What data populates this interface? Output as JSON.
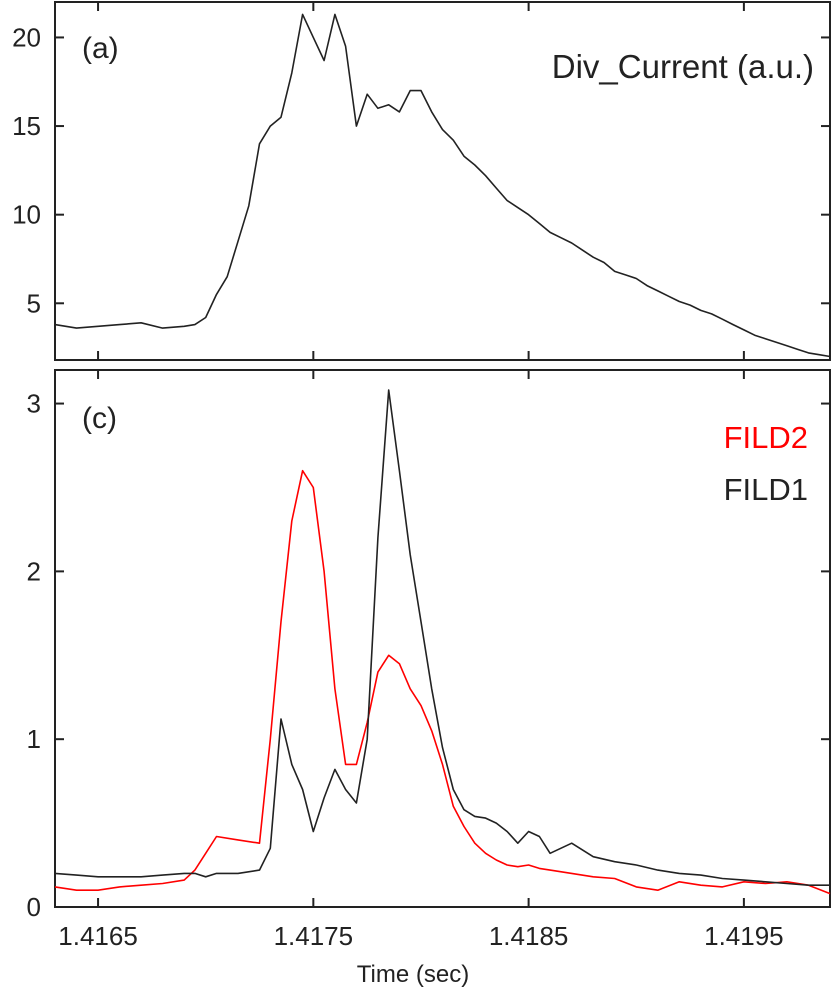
{
  "chart_data": [
    {
      "type": "line",
      "panel_label": "(a)",
      "ylabel": "",
      "xlabel": "",
      "xlim": [
        1.4163,
        1.4199
      ],
      "ylim": [
        1.8,
        22
      ],
      "yticks": [
        5,
        10,
        15,
        20
      ],
      "ytick_labels": [
        "5",
        "10",
        "15",
        "20"
      ],
      "annotation": "Div_Current (a.u.)",
      "series": [
        {
          "color": "#222222",
          "x": [
            1.4163,
            1.4164,
            1.4165,
            1.4166,
            1.4167,
            1.4168,
            1.4169,
            1.41695,
            1.417,
            1.41705,
            1.4171,
            1.41715,
            1.4172,
            1.41725,
            1.4173,
            1.41735,
            1.4174,
            1.41745,
            1.4175,
            1.41755,
            1.4176,
            1.41765,
            1.4177,
            1.41775,
            1.4178,
            1.41785,
            1.4179,
            1.41795,
            1.418,
            1.41805,
            1.4181,
            1.41815,
            1.4182,
            1.41825,
            1.4183,
            1.41835,
            1.4184,
            1.41845,
            1.4185,
            1.41855,
            1.4186,
            1.41865,
            1.4187,
            1.41875,
            1.4188,
            1.41885,
            1.4189,
            1.41895,
            1.419,
            1.41905,
            1.4191,
            1.41915,
            1.4192,
            1.41925,
            1.4193,
            1.41935,
            1.4194,
            1.41945,
            1.4195,
            1.41955,
            1.4196,
            1.41965,
            1.4197,
            1.41975,
            1.4198,
            1.41985,
            1.4199
          ],
          "y": [
            3.8,
            3.6,
            3.7,
            3.8,
            3.9,
            3.6,
            3.7,
            3.8,
            4.2,
            5.5,
            6.5,
            8.5,
            10.5,
            14.0,
            15.0,
            15.5,
            18.0,
            21.3,
            20.0,
            18.7,
            21.3,
            19.5,
            15.0,
            16.8,
            16.0,
            16.2,
            15.8,
            17.0,
            17.0,
            15.8,
            14.8,
            14.2,
            13.3,
            12.8,
            12.2,
            11.5,
            10.8,
            10.4,
            10.0,
            9.5,
            9.0,
            8.7,
            8.4,
            8.0,
            7.6,
            7.3,
            6.8,
            6.6,
            6.4,
            6.0,
            5.7,
            5.4,
            5.1,
            4.9,
            4.6,
            4.4,
            4.1,
            3.8,
            3.5,
            3.2,
            3.0,
            2.8,
            2.6,
            2.4,
            2.2,
            2.1,
            2.0
          ]
        }
      ]
    },
    {
      "type": "line",
      "panel_label": "(c)",
      "xlabel": "Time (sec)",
      "ylabel": "",
      "xlim": [
        1.4163,
        1.4199
      ],
      "ylim": [
        0,
        3.2
      ],
      "yticks": [
        0,
        1,
        2,
        3
      ],
      "ytick_labels": [
        "0",
        "1",
        "2",
        "3"
      ],
      "xticks": [
        1.4165,
        1.4175,
        1.4185,
        1.4195
      ],
      "xtick_labels": [
        "1.4165",
        "1.4175",
        "1.4185",
        "1.4195"
      ],
      "series": [
        {
          "name": "FILD2",
          "color": "#ff0000",
          "x": [
            1.4163,
            1.4164,
            1.4165,
            1.4166,
            1.4167,
            1.4168,
            1.4169,
            1.41695,
            1.417,
            1.41705,
            1.41715,
            1.41725,
            1.4173,
            1.41735,
            1.4174,
            1.41745,
            1.4175,
            1.41755,
            1.4176,
            1.41765,
            1.4177,
            1.41775,
            1.4178,
            1.41785,
            1.4179,
            1.41795,
            1.418,
            1.41805,
            1.4181,
            1.41815,
            1.4182,
            1.41825,
            1.4183,
            1.41835,
            1.4184,
            1.41845,
            1.4185,
            1.41855,
            1.4186,
            1.4187,
            1.4188,
            1.4189,
            1.419,
            1.4191,
            1.4192,
            1.4193,
            1.4194,
            1.4195,
            1.4196,
            1.4197,
            1.4198,
            1.4199
          ],
          "y": [
            0.12,
            0.1,
            0.1,
            0.12,
            0.13,
            0.14,
            0.16,
            0.22,
            0.32,
            0.42,
            0.4,
            0.38,
            1.0,
            1.7,
            2.3,
            2.6,
            2.5,
            2.0,
            1.3,
            0.85,
            0.85,
            1.1,
            1.4,
            1.5,
            1.45,
            1.3,
            1.2,
            1.05,
            0.85,
            0.6,
            0.48,
            0.38,
            0.32,
            0.28,
            0.25,
            0.24,
            0.25,
            0.23,
            0.22,
            0.2,
            0.18,
            0.17,
            0.12,
            0.1,
            0.15,
            0.13,
            0.12,
            0.15,
            0.14,
            0.15,
            0.13,
            0.08
          ]
        },
        {
          "name": "FILD1",
          "color": "#222222",
          "x": [
            1.4163,
            1.4164,
            1.4165,
            1.4166,
            1.4167,
            1.4168,
            1.4169,
            1.41695,
            1.417,
            1.41705,
            1.41715,
            1.41725,
            1.4173,
            1.41735,
            1.4174,
            1.41745,
            1.4175,
            1.41755,
            1.4176,
            1.41765,
            1.4177,
            1.41775,
            1.4178,
            1.41785,
            1.4179,
            1.41795,
            1.418,
            1.41805,
            1.4181,
            1.41815,
            1.4182,
            1.41825,
            1.4183,
            1.41835,
            1.4184,
            1.41845,
            1.4185,
            1.41855,
            1.4186,
            1.4187,
            1.4188,
            1.4189,
            1.419,
            1.4191,
            1.4192,
            1.4193,
            1.4194,
            1.4195,
            1.4196,
            1.4197,
            1.4198,
            1.4199
          ],
          "y": [
            0.2,
            0.19,
            0.18,
            0.18,
            0.18,
            0.19,
            0.2,
            0.2,
            0.18,
            0.2,
            0.2,
            0.22,
            0.35,
            1.12,
            0.85,
            0.7,
            0.45,
            0.65,
            0.82,
            0.7,
            0.62,
            1.0,
            2.2,
            3.08,
            2.6,
            2.1,
            1.7,
            1.3,
            0.95,
            0.7,
            0.58,
            0.54,
            0.53,
            0.5,
            0.45,
            0.38,
            0.45,
            0.42,
            0.32,
            0.38,
            0.3,
            0.27,
            0.25,
            0.22,
            0.2,
            0.19,
            0.17,
            0.16,
            0.15,
            0.14,
            0.13,
            0.13
          ]
        }
      ],
      "legend": [
        {
          "label": "FILD2",
          "color": "#ff0000"
        },
        {
          "label": "FILD1",
          "color": "#222222"
        }
      ]
    }
  ]
}
